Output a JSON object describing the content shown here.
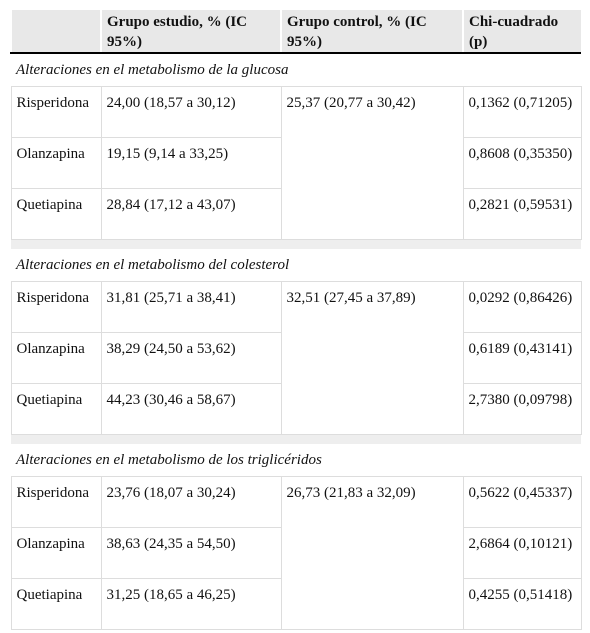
{
  "header": {
    "columns": [
      "Grupo estudio, % (IC 95%)",
      "Grupo control, % (IC 95%)",
      "Chi-cuadrado (p)"
    ]
  },
  "sections": [
    {
      "title": "Alteraciones en el metabolismo de la glucosa",
      "control": "25,37 (20,77 a 30,42)",
      "rows": [
        {
          "drug": "Risperidona",
          "study": "24,00 (18,57 a 30,12)",
          "chi": "0,1362 (0,71205)"
        },
        {
          "drug": "Olanzapina",
          "study": "19,15 (9,14 a 33,25)",
          "chi": "0,8608 (0,35350)"
        },
        {
          "drug": "Quetiapina",
          "study": "28,84 (17,12 a 43,07)",
          "chi": "0,2821 (0,59531)"
        }
      ]
    },
    {
      "title": "Alteraciones en el metabolismo del colesterol",
      "control": "32,51 (27,45 a 37,89)",
      "rows": [
        {
          "drug": "Risperidona",
          "study": "31,81 (25,71 a 38,41)",
          "chi": "0,0292 (0,86426)"
        },
        {
          "drug": "Olanzapina",
          "study": "38,29 (24,50 a 53,62)",
          "chi": "0,6189 (0,43141)"
        },
        {
          "drug": "Quetiapina",
          "study": "44,23 (30,46 a 58,67)",
          "chi": "2,7380 (0,09798)"
        }
      ]
    },
    {
      "title": "Alteraciones en el metabolismo de los triglicéridos",
      "control": "26,73 (21,83 a 32,09)",
      "rows": [
        {
          "drug": "Risperidona",
          "study": "23,76 (18,07 a 30,24)",
          "chi": "0,5622 (0,45337)"
        },
        {
          "drug": "Olanzapina",
          "study": "38,63 (24,35 a 54,50)",
          "chi": "2,6864 (0,10121)"
        },
        {
          "drug": "Quetiapina",
          "study": "31,25 (18,65 a 46,25)",
          "chi": "0,4255 (0,51418)"
        }
      ]
    }
  ]
}
